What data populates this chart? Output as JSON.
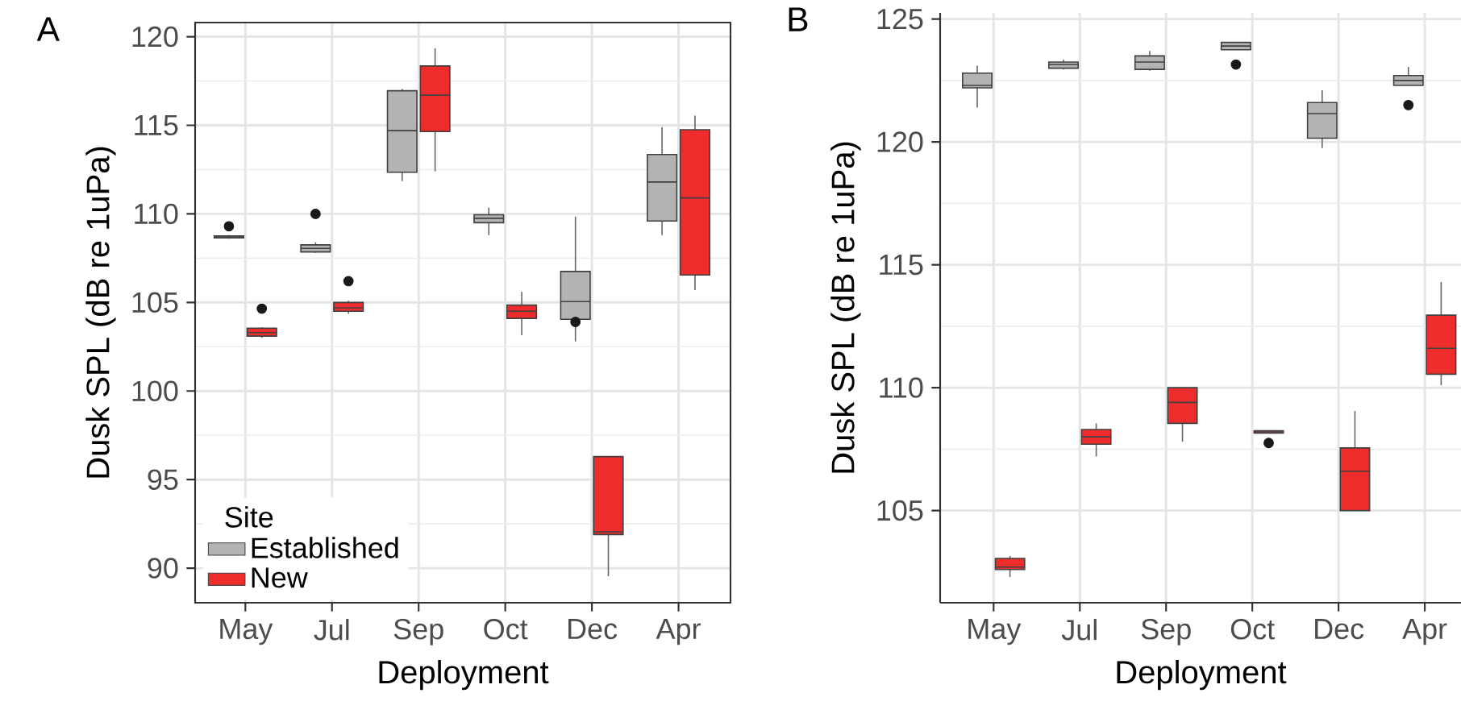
{
  "chart_data": [
    {
      "type": "box",
      "title": "A",
      "xlabel": "Deployment",
      "ylabel": "Dusk SPL (dB re 1uPa)",
      "categories": [
        "May",
        "Jul",
        "Sep",
        "Oct",
        "Dec",
        "Apr"
      ],
      "ylim": [
        88.05,
        120.8
      ],
      "yticks": [
        90,
        95,
        100,
        105,
        110,
        115,
        120
      ],
      "grid": true,
      "legend": "bottom left",
      "legend_title": "Site",
      "series": [
        {
          "name": "Established",
          "color": "#b3b3b3",
          "boxes": [
            {
              "low": 108.6,
              "q1": 108.65,
              "median": 108.7,
              "q3": 108.75,
              "high": 108.8,
              "outliers": [
                109.3
              ]
            },
            {
              "low": 107.8,
              "q1": 107.85,
              "median": 108.05,
              "q3": 108.25,
              "high": 108.4,
              "outliers": [
                110.0
              ]
            },
            {
              "low": 111.85,
              "q1": 112.35,
              "median": 114.7,
              "q3": 116.95,
              "high": 117.05
            },
            {
              "low": 108.8,
              "q1": 109.5,
              "median": 109.75,
              "q3": 109.95,
              "high": 110.35
            },
            {
              "low": 102.8,
              "q1": 104.05,
              "median": 105.05,
              "q3": 106.75,
              "high": 109.85,
              "outliers": [
                103.9
              ]
            },
            {
              "low": 108.8,
              "q1": 109.6,
              "median": 111.8,
              "q3": 113.35,
              "high": 114.9
            }
          ]
        },
        {
          "name": "New",
          "color": "#ee2c2c",
          "boxes": [
            {
              "low": 103.0,
              "q1": 103.1,
              "median": 103.3,
              "q3": 103.55,
              "high": 103.6,
              "outliers": [
                104.65
              ]
            },
            {
              "low": 104.35,
              "q1": 104.5,
              "median": 104.7,
              "q3": 105.0,
              "high": 105.1,
              "outliers": [
                106.2
              ]
            },
            {
              "low": 112.4,
              "q1": 114.65,
              "median": 116.7,
              "q3": 118.35,
              "high": 119.35
            },
            {
              "low": 103.15,
              "q1": 104.1,
              "median": 104.5,
              "q3": 104.85,
              "high": 105.6
            },
            {
              "low": 89.55,
              "q1": 91.9,
              "median": 92.05,
              "q3": 96.3,
              "high": 96.3
            },
            {
              "low": 105.7,
              "q1": 106.55,
              "median": 110.9,
              "q3": 114.75,
              "high": 115.55
            }
          ]
        }
      ]
    },
    {
      "type": "box",
      "title": "B",
      "xlabel": "Deployment",
      "ylabel": "Dusk SPL (dB re 1uPa)",
      "categories": [
        "May",
        "Jul",
        "Sep",
        "Oct",
        "Dec",
        "Apr"
      ],
      "ylim": [
        101.25,
        125.25
      ],
      "yticks": [
        105,
        110,
        115,
        120,
        125
      ],
      "grid": true,
      "series": [
        {
          "color": "#b3b3b3",
          "boxes": [
            {
              "low": 121.4,
              "q1": 122.2,
              "median": 122.3,
              "q3": 122.8,
              "high": 123.1
            },
            {
              "low": 122.95,
              "q1": 123.0,
              "median": 123.15,
              "q3": 123.25,
              "high": 123.35
            },
            {
              "low": 122.9,
              "q1": 122.95,
              "median": 123.25,
              "q3": 123.5,
              "high": 123.7
            },
            {
              "low": 123.75,
              "q1": 123.75,
              "median": 123.9,
              "q3": 124.05,
              "high": 124.05,
              "outliers": [
                123.15
              ]
            },
            {
              "low": 119.75,
              "q1": 120.15,
              "median": 121.15,
              "q3": 121.6,
              "high": 122.1
            },
            {
              "low": 122.3,
              "q1": 122.3,
              "median": 122.5,
              "q3": 122.7,
              "high": 123.05,
              "outliers": [
                121.5
              ]
            }
          ]
        },
        {
          "color": "#ee2c2c",
          "boxes": [
            {
              "low": 102.3,
              "q1": 102.6,
              "median": 102.7,
              "q3": 103.05,
              "high": 103.15
            },
            {
              "low": 107.2,
              "q1": 107.7,
              "median": 108.0,
              "q3": 108.3,
              "high": 108.55
            },
            {
              "low": 107.8,
              "q1": 108.55,
              "median": 109.4,
              "q3": 110.0,
              "high": 110.0
            },
            {
              "low": 108.15,
              "q1": 108.15,
              "median": 108.2,
              "q3": 108.25,
              "high": 108.25,
              "outliers": [
                107.75
              ]
            },
            {
              "low": 105.0,
              "q1": 105.0,
              "median": 106.6,
              "q3": 107.55,
              "high": 109.05
            },
            {
              "low": 110.1,
              "q1": 110.55,
              "median": 111.6,
              "q3": 112.95,
              "high": 114.3
            }
          ]
        }
      ]
    }
  ]
}
